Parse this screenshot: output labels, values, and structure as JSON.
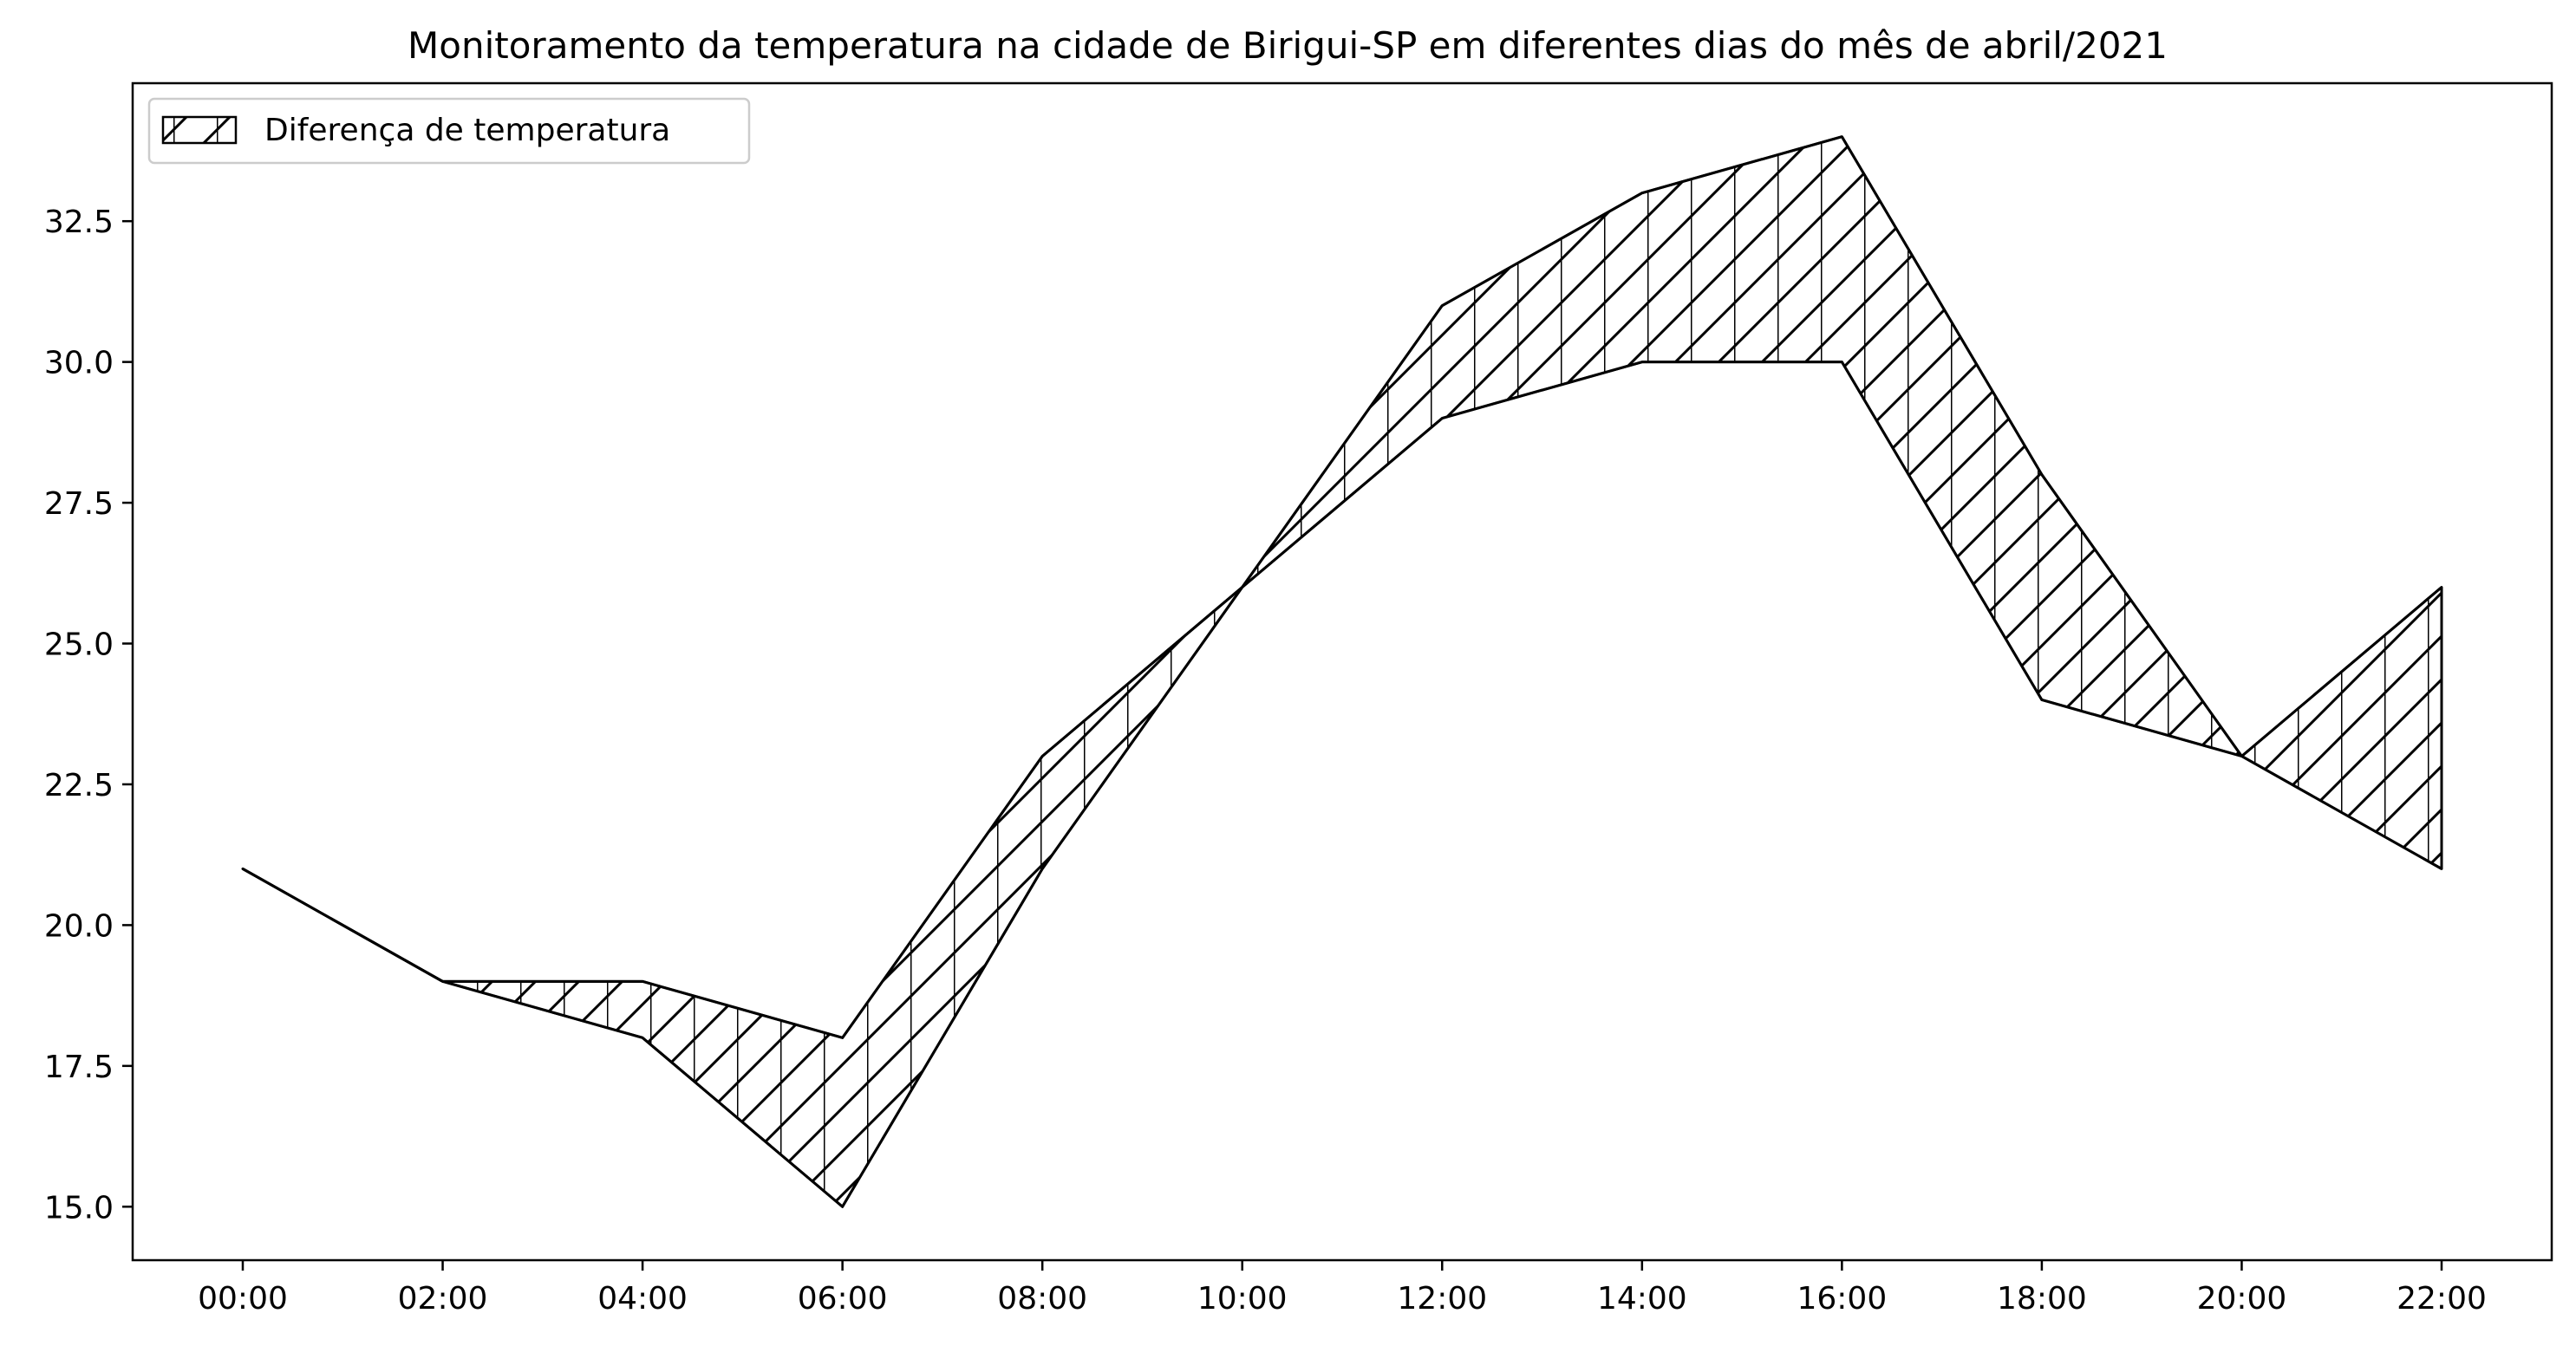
{
  "chart_data": {
    "type": "area",
    "title": "Monitoramento da temperatura na cidade de Birigui-SP em diferentes dias do mês de abril/2021",
    "xlabel": "",
    "ylabel": "",
    "categories": [
      "00:00",
      "02:00",
      "04:00",
      "06:00",
      "08:00",
      "10:00",
      "12:00",
      "14:00",
      "16:00",
      "18:00",
      "20:00",
      "22:00"
    ],
    "series": [
      {
        "values": [
          21,
          19,
          19,
          18,
          23,
          26,
          31,
          33,
          34,
          28,
          23,
          26
        ]
      },
      {
        "values": [
          21,
          19,
          18,
          15,
          21,
          26,
          29,
          30,
          30,
          24,
          23,
          21
        ]
      }
    ],
    "fill_between": {
      "label": "Diferença de temperatura",
      "hatch": "/|"
    },
    "yticks": [
      15.0,
      17.5,
      20.0,
      22.5,
      25.0,
      27.5,
      30.0,
      32.5
    ],
    "ytick_labels": [
      "15.0",
      "17.5",
      "20.0",
      "22.5",
      "25.0",
      "27.5",
      "30.0",
      "32.5"
    ],
    "ylim": [
      14.05,
      34.95
    ],
    "grid": false,
    "legend_position": "upper-left",
    "colors": {
      "line": "#000000",
      "background": "#ffffff"
    }
  }
}
